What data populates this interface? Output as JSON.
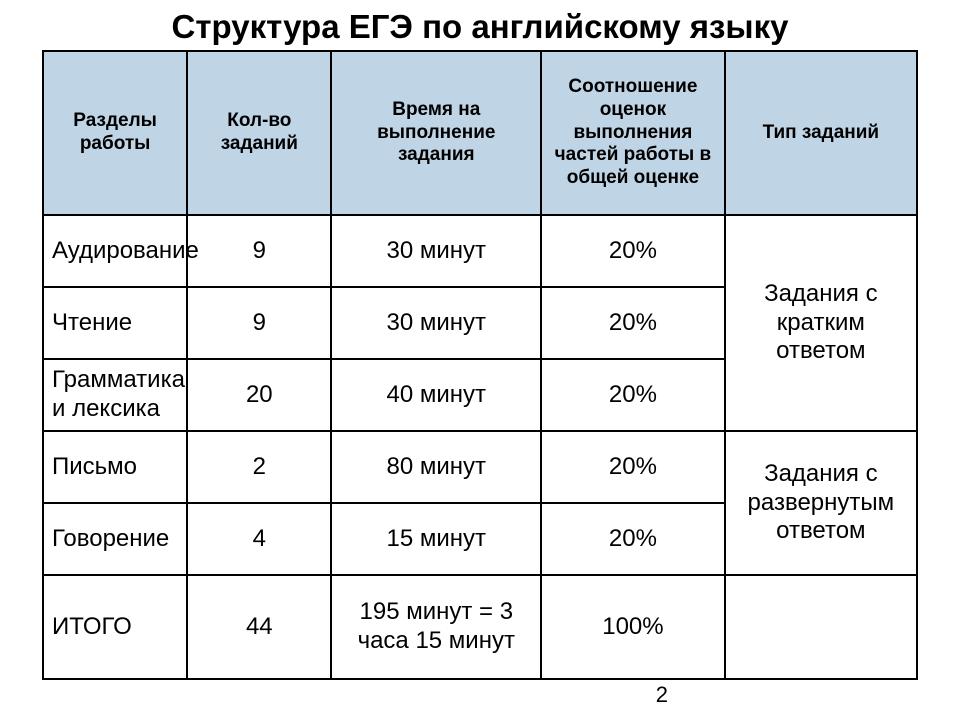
{
  "title": "Структура ЕГЭ по английскому языку",
  "pageNumber": "2",
  "table": {
    "headers": [
      "Разделы работы",
      "Кол-во заданий",
      "Время на выполнение задания",
      "Соотношение оценок выполнения частей работы в общей оценке",
      "Тип  заданий"
    ],
    "colWidths": [
      "16.5%",
      "16.5%",
      "24%",
      "21%",
      "22%"
    ],
    "headerBg": "#bfd4e4",
    "borderColor": "#000000",
    "rows": [
      {
        "section": "Аудирование",
        "count": "9",
        "time": "30 минут",
        "percent": "20%"
      },
      {
        "section": "Чтение",
        "count": "9",
        "time": "30 минут",
        "percent": "20%"
      },
      {
        "section": "Грамматика и лексика",
        "count": "20",
        "time": "40 минут",
        "percent": "20%"
      },
      {
        "section": "Письмо",
        "count": "2",
        "time": "80 минут",
        "percent": "20%"
      },
      {
        "section": "Говорение",
        "count": "4",
        "time": "15 минут",
        "percent": "20%"
      }
    ],
    "typeGroups": [
      {
        "label": "Задания с кратким ответом",
        "rowspan": 3
      },
      {
        "label": "Задания с развернутым ответом",
        "rowspan": 2
      }
    ],
    "total": {
      "section": "ИТОГО",
      "count": "44",
      "time": "195 минут = 3 часа 15 минут",
      "percent": "100%",
      "type": ""
    }
  }
}
